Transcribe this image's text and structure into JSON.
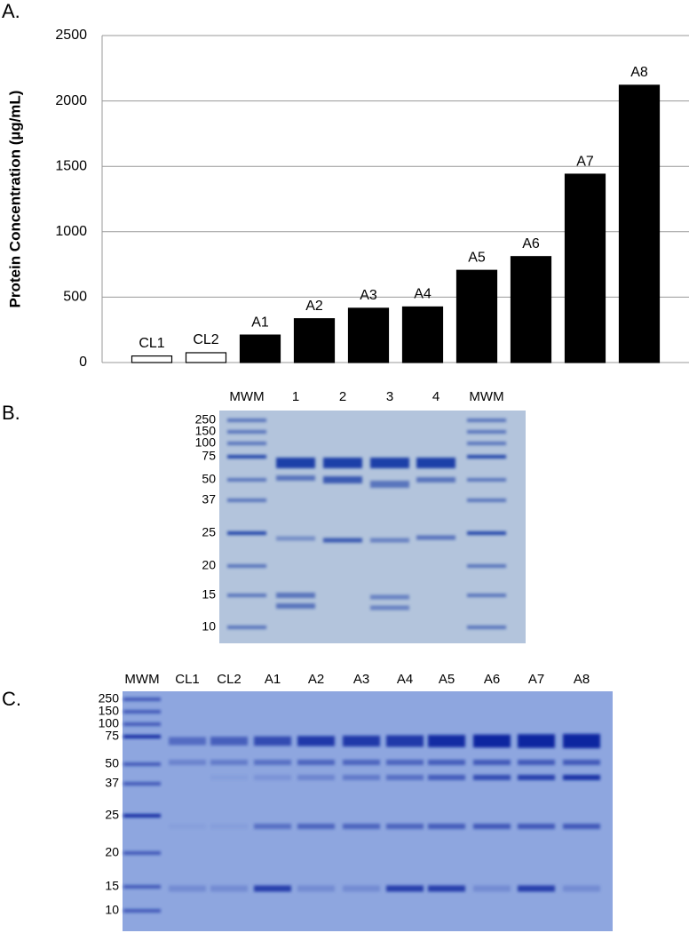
{
  "chart_data": {
    "type": "bar",
    "panel": "A.",
    "ylabel": "Protein Concentration (µg/mL)",
    "categories": [
      "CL1",
      "CL2",
      "A1",
      "A2",
      "A3",
      "A4",
      "A5",
      "A6",
      "A7",
      "A8"
    ],
    "values": [
      50,
      75,
      210,
      335,
      415,
      425,
      705,
      810,
      1440,
      2120
    ],
    "colors": [
      "#ffffff",
      "#ffffff",
      "#000000",
      "#000000",
      "#000000",
      "#000000",
      "#000000",
      "#000000",
      "#000000",
      "#000000"
    ],
    "edgecolor": "#000000",
    "ylim": [
      0,
      2500
    ],
    "yticks": [
      0,
      500,
      1000,
      1500,
      2000,
      2500
    ],
    "grid": true
  },
  "gel_b": {
    "panel": "B.",
    "lanes": [
      "MWM",
      "1",
      "2",
      "3",
      "4",
      "MWM"
    ],
    "mw_labels": [
      "250",
      "150",
      "100",
      "75",
      "50",
      "37",
      "25",
      "20",
      "15",
      "10"
    ]
  },
  "gel_c": {
    "panel": "C.",
    "lanes": [
      "MWM",
      "CL1",
      "CL2",
      "A1",
      "A2",
      "A3",
      "A4",
      "A5",
      "A6",
      "A7",
      "A8"
    ],
    "mw_labels": [
      "250",
      "150",
      "100",
      "75",
      "50",
      "37",
      "25",
      "20",
      "15",
      "10"
    ]
  }
}
